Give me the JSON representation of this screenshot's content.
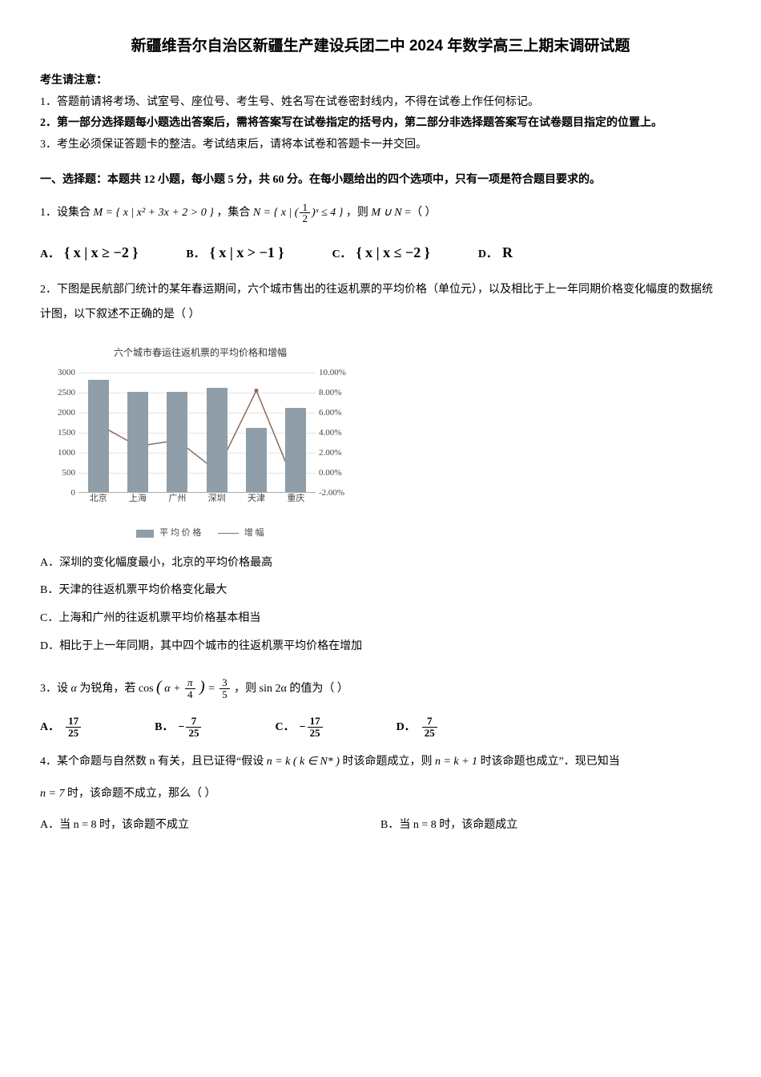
{
  "title": "新疆维吾尔自治区新疆生产建设兵团二中 2024 年数学高三上期末调研试题",
  "notice": {
    "head": "考生请注意：",
    "l1": "1．答题前请将考场、试室号、座位号、考生号、姓名写在试卷密封线内，不得在试卷上作任何标记。",
    "l2": "2．第一部分选择题每小题选出答案后，需将答案写在试卷指定的括号内，第二部分非选择题答案写在试卷题目指定的位置上。",
    "l3": "3．考生必须保证答题卡的整洁。考试结束后，请将本试卷和答题卡一并交回。"
  },
  "section1": "一、选择题：本题共 12 小题，每小题 5 分，共 60 分。在每小题给出的四个选项中，只有一项是符合题目要求的。",
  "q1": {
    "pre": "1．设集合 ",
    "M": "M = { x | x² + 3x + 2 > 0 }",
    "mid1": "，集合 ",
    "N_pre": "N = { x | (",
    "N_frac_num": "1",
    "N_frac_den": "2",
    "N_post": ")ˣ ≤ 4 }",
    "mid2": "，则 ",
    "union": "M ∪ N",
    "tail": " =（ ）",
    "optA": "{ x | x ≥ −2 }",
    "optB": "{ x | x > −1 }",
    "optC": "{ x | x ≤ −2 }",
    "optD": "R",
    "lblA": "A．",
    "lblB": "B．",
    "lblC": "C．",
    "lblD": "D．"
  },
  "q2": {
    "stem": "2．下图是民航部门统计的某年春运期间，六个城市售出的往返机票的平均价格（单位元），以及相比于上一年同期价格变化幅度的数据统计图，以下叙述不正确的是（ ）",
    "chart": {
      "title": "六个城市春运往返机票的平均价格和增幅",
      "categories": [
        "北京",
        "上海",
        "广州",
        "深圳",
        "天津",
        "重庆"
      ],
      "bar_values": [
        2800,
        2500,
        2500,
        2600,
        1600,
        2100
      ],
      "line_values_pct": [
        4.8,
        2.6,
        3.2,
        0.1,
        8.2,
        -1.5
      ],
      "y_left": {
        "min": 0,
        "max": 3000,
        "step": 500
      },
      "y_right": {
        "min": -2,
        "max": 10,
        "step": 2,
        "suffix": "%"
      },
      "bar_color": "#8f9ea8",
      "line_color": "#8a6b5a",
      "grid_color": "#e4e4e4",
      "legend_bar": "平 均 价 格",
      "legend_line": "增 幅"
    },
    "optA": "A．深圳的变化幅度最小，北京的平均价格最高",
    "optB": "B．天津的往返机票平均价格变化最大",
    "optC": "C．上海和广州的往返机票平均价格基本相当",
    "optD": "D．相比于上一年同期，其中四个城市的往返机票平均价格在增加"
  },
  "q3": {
    "pre": "3．设 ",
    "alpha": "α",
    "mid1": " 为锐角，若 ",
    "cos_l": "cos",
    "arg_l": "( α + ",
    "pi": "π",
    "four": "4",
    "arg_r": " )",
    "eq": " = ",
    "rhs_num": "3",
    "rhs_den": "5",
    "mid2": "，则 ",
    "sin2a": "sin 2α",
    "tail": " 的值为（ ）",
    "A_num": "17",
    "A_den": "25",
    "B_num": "7",
    "B_den": "25",
    "C_num": "17",
    "C_den": "25",
    "D_num": "7",
    "D_den": "25",
    "neg": "−",
    "lblA": "A．",
    "lblB": "B．",
    "lblC": "C．",
    "lblD": "D．"
  },
  "q4": {
    "stem1": "4．某个命题与自然数 n 有关，且已证得“假设 ",
    "nk": "n = k ( k ∈ N* )",
    "stem2": " 时该命题成立，则 ",
    "nk1": "n = k + 1",
    "stem3": " 时该命题也成立”．现已知当",
    "n7": "n = 7",
    "stem4": " 时，该命题不成立，那么（ ）",
    "optA": "A．当 n = 8 时，该命题不成立",
    "optB": "B．当 n = 8 时，该命题成立"
  }
}
